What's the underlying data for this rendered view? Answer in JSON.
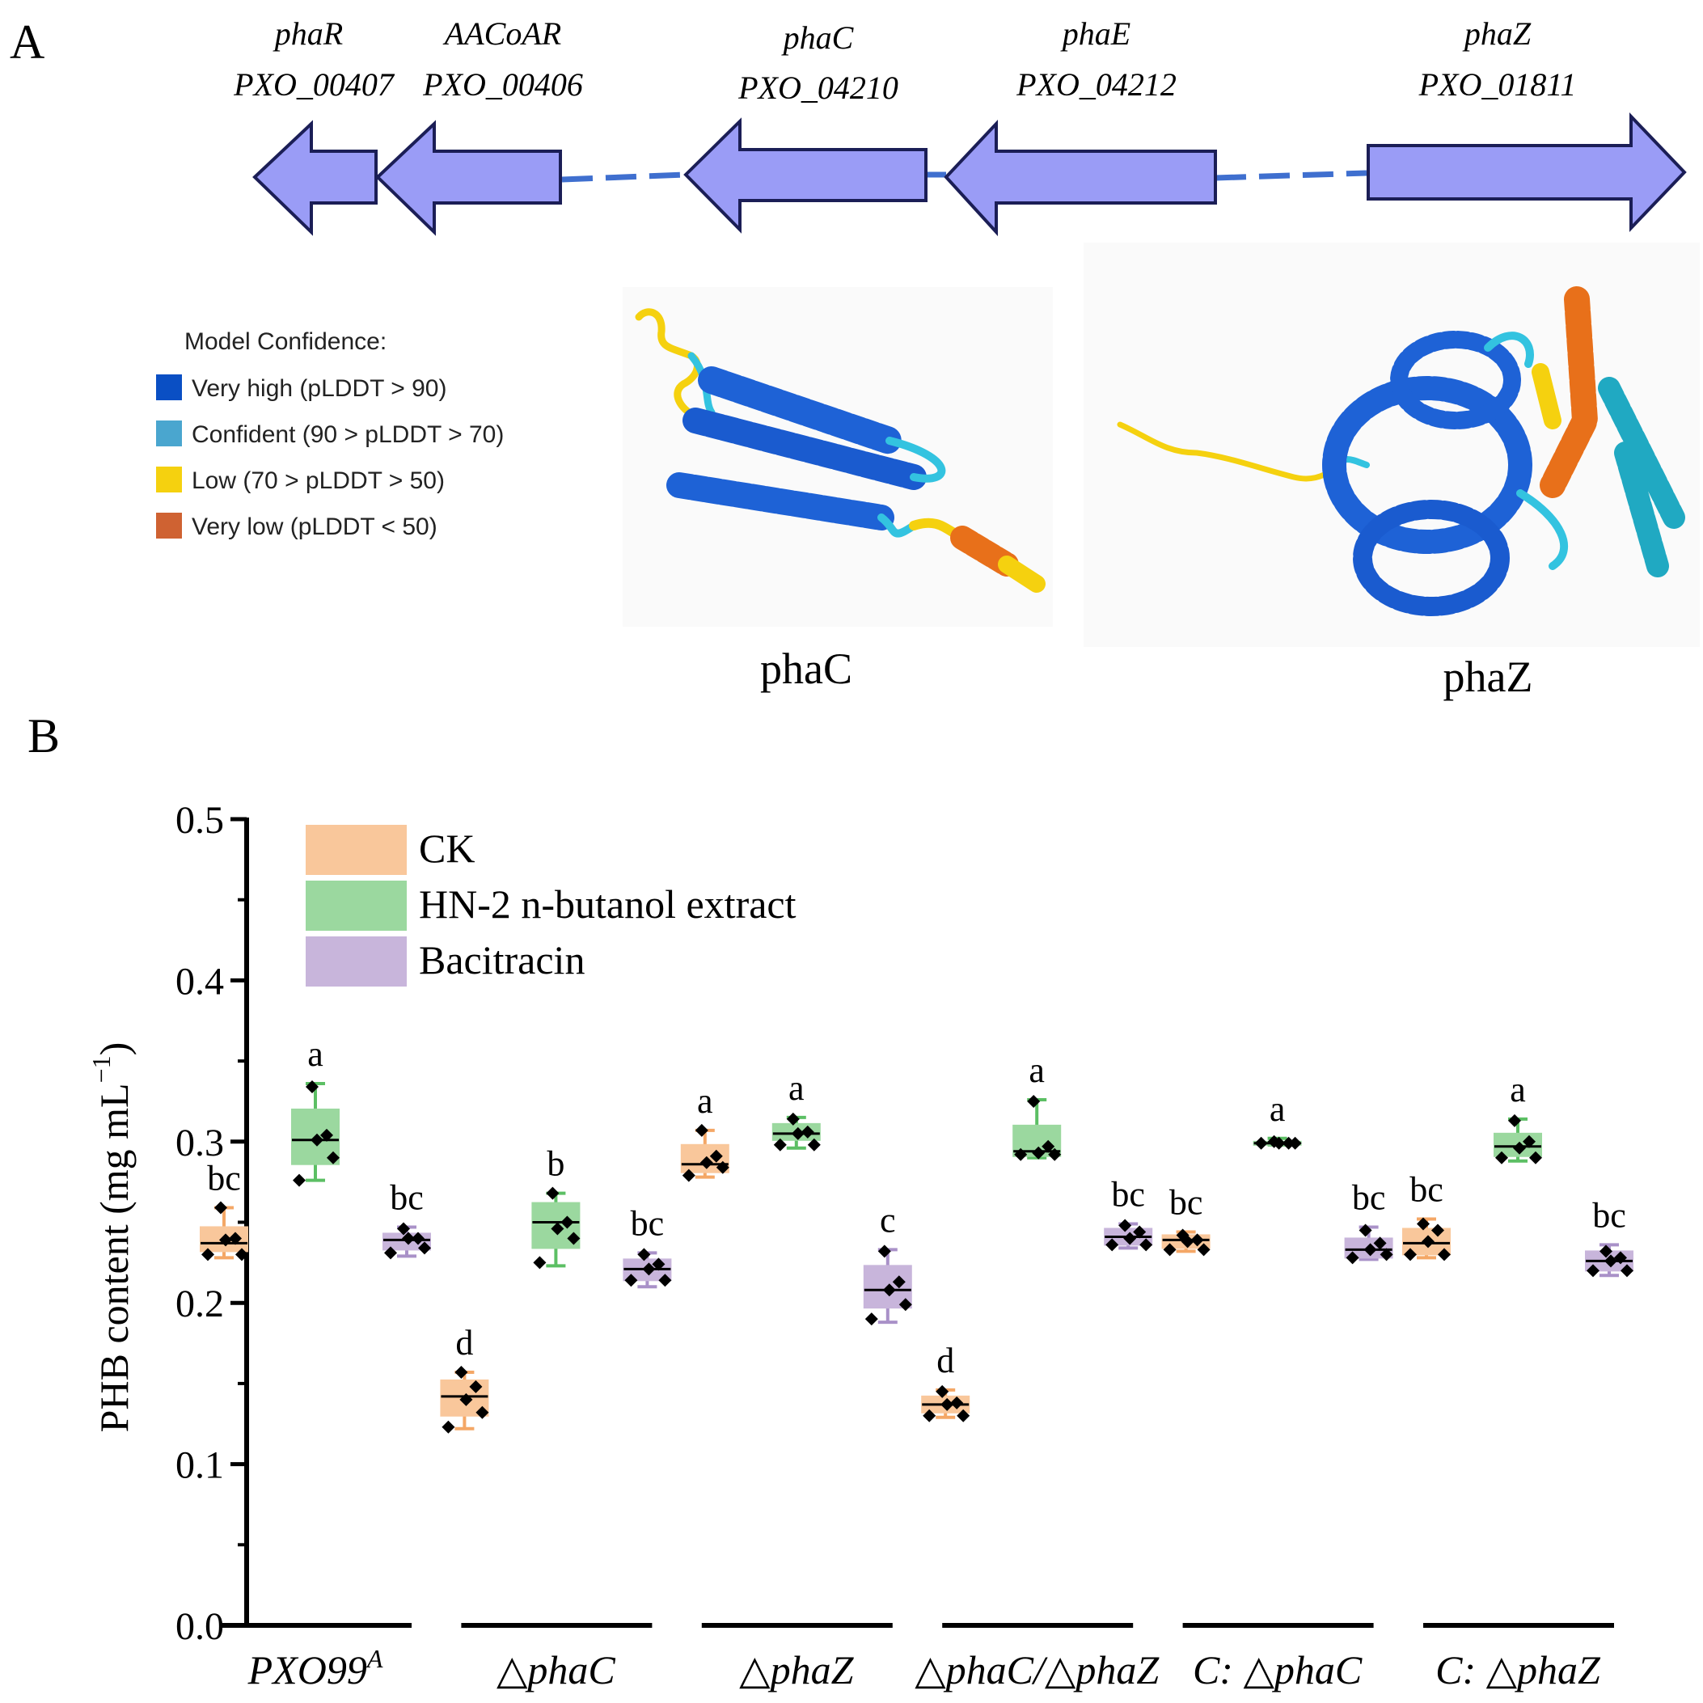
{
  "panel_a": {
    "label": "A",
    "genes": [
      {
        "name": "phaR",
        "locus": "PXO_00407",
        "direction": "left"
      },
      {
        "name": "AACoAR",
        "locus": "PXO_00406",
        "direction": "left"
      },
      {
        "name": "phaC",
        "locus": "PXO_04210",
        "direction": "left"
      },
      {
        "name": "phaE",
        "locus": "PXO_04212",
        "direction": "left"
      },
      {
        "name": "phaZ",
        "locus": "PXO_01811",
        "direction": "right"
      }
    ],
    "confidence_legend": {
      "title": "Model Confidence:",
      "items": [
        {
          "label": "Very high (pLDDT > 90)",
          "color": "#0a4fc4"
        },
        {
          "label": "Confident (90 > pLDDT > 70)",
          "color": "#4aa6cf"
        },
        {
          "label": "Low (70 > pLDDT > 50)",
          "color": "#f5d10f"
        },
        {
          "label": "Very low (pLDDT < 50)",
          "color": "#cf6232"
        }
      ]
    },
    "structures": [
      {
        "label": "phaC"
      },
      {
        "label": "phaZ"
      }
    ],
    "colors": {
      "gene_fill": "#9a9cf6",
      "gene_stroke": "#1b1e56",
      "connector": "#3f6fcf"
    }
  },
  "panel_b": {
    "label": "B"
  },
  "chart_data": {
    "type": "box",
    "title": "",
    "xlabel": "",
    "ylabel": "PHB content (mg mL",
    "ylabel_sup": "−1",
    "ylabel_suffix": ")",
    "ylim": [
      0.0,
      0.5
    ],
    "yticks": [
      "0.0",
      "0.1",
      "0.2",
      "0.3",
      "0.4",
      "0.5"
    ],
    "ytick_values": [
      0.0,
      0.1,
      0.2,
      0.3,
      0.4,
      0.5
    ],
    "groups": [
      {
        "label": "PXO99",
        "sup": "A",
        "italic": true
      },
      {
        "label": "△phaC",
        "sup": "",
        "italic": true
      },
      {
        "label": "△phaZ",
        "sup": "",
        "italic": true
      },
      {
        "label": "△phaC/△phaZ",
        "sup": "",
        "italic": true
      },
      {
        "label": "C: △phaC",
        "sup": "",
        "italic": true
      },
      {
        "label": "C: △phaZ",
        "sup": "",
        "italic": true
      }
    ],
    "legend": [
      {
        "name": "CK",
        "color": "#f9c79b"
      },
      {
        "name": "HN-2 n-butanol extract",
        "color": "#9bd89f"
      },
      {
        "name": "Bacitracin",
        "color": "#c8b5db"
      }
    ],
    "series": [
      {
        "name": "CK",
        "box_color": "#f9c79b",
        "whisker_color": "#f4a766",
        "boxes": [
          {
            "min": 0.228,
            "q1": 0.232,
            "median": 0.237,
            "q3": 0.247,
            "max": 0.259,
            "points": [
              0.259,
              0.24,
              0.239,
              0.23,
              0.23
            ],
            "letter": "bc"
          },
          {
            "min": 0.122,
            "q1": 0.13,
            "median": 0.142,
            "q3": 0.152,
            "max": 0.157,
            "points": [
              0.157,
              0.148,
              0.14,
              0.132,
              0.123
            ],
            "letter": "d"
          },
          {
            "min": 0.278,
            "q1": 0.281,
            "median": 0.286,
            "q3": 0.298,
            "max": 0.307,
            "points": [
              0.307,
              0.291,
              0.287,
              0.284,
              0.279
            ],
            "letter": "a"
          },
          {
            "min": 0.129,
            "q1": 0.132,
            "median": 0.137,
            "q3": 0.142,
            "max": 0.146,
            "points": [
              0.145,
              0.138,
              0.137,
              0.13,
              0.13
            ],
            "letter": "d"
          },
          {
            "min": 0.232,
            "q1": 0.234,
            "median": 0.239,
            "q3": 0.242,
            "max": 0.244,
            "points": [
              0.242,
              0.239,
              0.238,
              0.233,
              0.233
            ],
            "letter": "bc"
          },
          {
            "min": 0.228,
            "q1": 0.23,
            "median": 0.237,
            "q3": 0.246,
            "max": 0.252,
            "points": [
              0.249,
              0.245,
              0.238,
              0.23,
              0.23
            ],
            "letter": "bc"
          }
        ]
      },
      {
        "name": "HN-2 n-butanol extract",
        "box_color": "#9bd89f",
        "whisker_color": "#5cbf64",
        "boxes": [
          {
            "min": 0.276,
            "q1": 0.286,
            "median": 0.301,
            "q3": 0.32,
            "max": 0.336,
            "points": [
              0.334,
              0.304,
              0.301,
              0.29,
              0.276
            ],
            "letter": "a"
          },
          {
            "min": 0.223,
            "q1": 0.234,
            "median": 0.25,
            "q3": 0.262,
            "max": 0.268,
            "points": [
              0.268,
              0.25,
              0.246,
              0.24,
              0.225
            ],
            "letter": "b"
          },
          {
            "min": 0.296,
            "q1": 0.301,
            "median": 0.305,
            "q3": 0.311,
            "max": 0.315,
            "points": [
              0.314,
              0.306,
              0.305,
              0.298,
              0.298
            ],
            "letter": "a"
          },
          {
            "min": 0.29,
            "q1": 0.291,
            "median": 0.294,
            "q3": 0.31,
            "max": 0.326,
            "points": [
              0.325,
              0.297,
              0.293,
              0.292,
              0.292
            ],
            "letter": "a"
          },
          {
            "min": 0.298,
            "q1": 0.298,
            "median": 0.299,
            "q3": 0.3,
            "max": 0.302,
            "points": [
              0.3,
              0.299,
              0.299,
              0.299,
              0.299
            ],
            "letter": "a"
          },
          {
            "min": 0.288,
            "q1": 0.291,
            "median": 0.297,
            "q3": 0.305,
            "max": 0.314,
            "points": [
              0.313,
              0.3,
              0.296,
              0.29,
              0.29
            ],
            "letter": "a"
          }
        ]
      },
      {
        "name": "Bacitracin",
        "box_color": "#c8b5db",
        "whisker_color": "#a991c8",
        "boxes": [
          {
            "min": 0.229,
            "q1": 0.233,
            "median": 0.239,
            "q3": 0.243,
            "max": 0.247,
            "points": [
              0.246,
              0.24,
              0.24,
              0.234,
              0.231
            ],
            "letter": "bc"
          },
          {
            "min": 0.21,
            "q1": 0.214,
            "median": 0.221,
            "q3": 0.227,
            "max": 0.231,
            "points": [
              0.23,
              0.224,
              0.221,
              0.214,
              0.214
            ],
            "letter": "bc"
          },
          {
            "min": 0.188,
            "q1": 0.197,
            "median": 0.208,
            "q3": 0.223,
            "max": 0.233,
            "points": [
              0.232,
              0.213,
              0.208,
              0.199,
              0.19
            ],
            "letter": "c"
          },
          {
            "min": 0.234,
            "q1": 0.236,
            "median": 0.241,
            "q3": 0.246,
            "max": 0.249,
            "points": [
              0.248,
              0.244,
              0.24,
              0.236,
              0.236
            ],
            "letter": "bc"
          },
          {
            "min": 0.227,
            "q1": 0.228,
            "median": 0.233,
            "q3": 0.24,
            "max": 0.247,
            "points": [
              0.245,
              0.237,
              0.233,
              0.23,
              0.228
            ],
            "letter": "bc"
          },
          {
            "min": 0.217,
            "q1": 0.22,
            "median": 0.226,
            "q3": 0.232,
            "max": 0.236,
            "points": [
              0.232,
              0.228,
              0.226,
              0.22,
              0.22
            ],
            "letter": "bc"
          }
        ]
      }
    ]
  }
}
